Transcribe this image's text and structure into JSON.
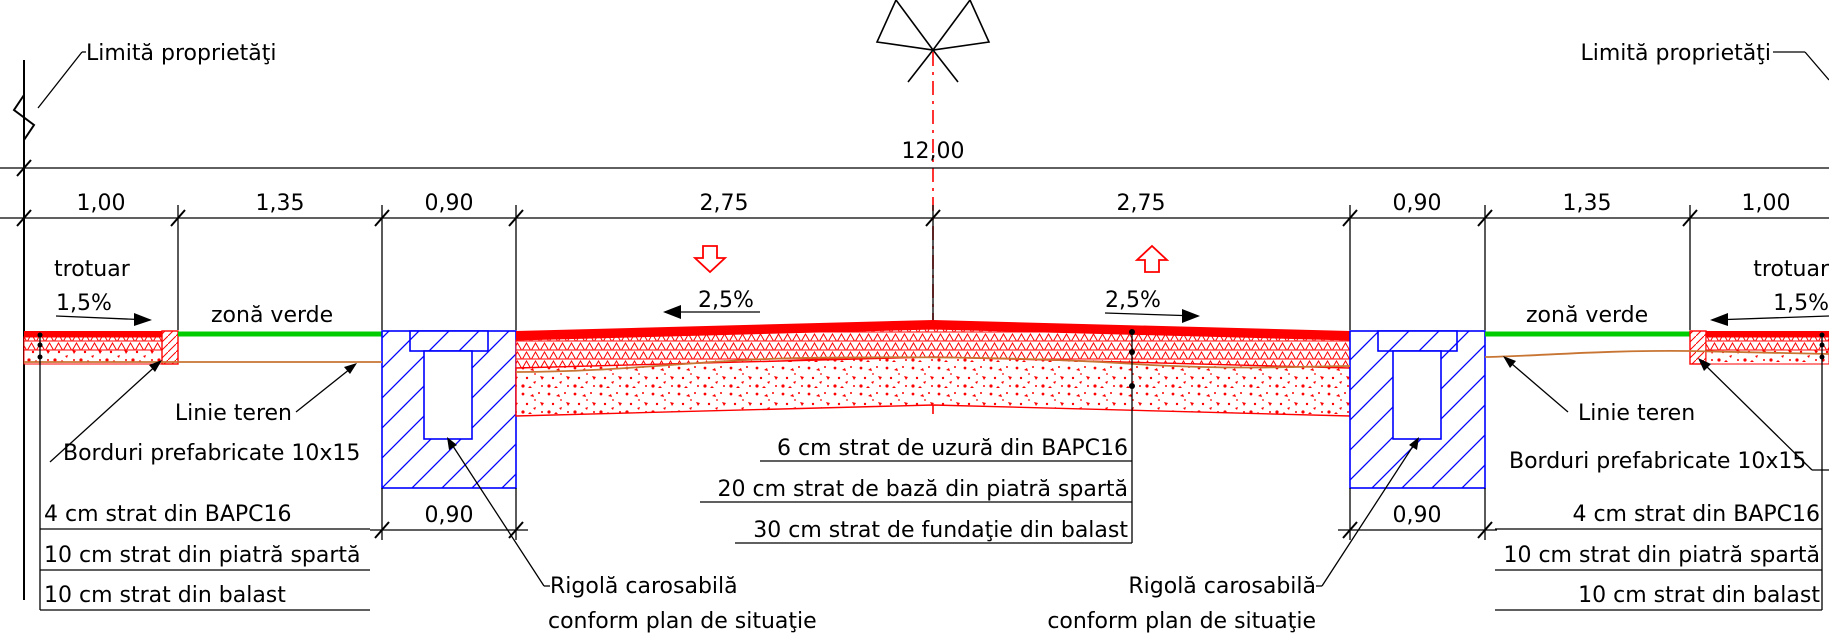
{
  "labels": {
    "property_limit_left": "Limită proprietăţi",
    "property_limit_right": "Limită proprietăţi",
    "sidewalk_left": "trotuar",
    "sidewalk_right": "trotuar",
    "green_left": "zonă verde",
    "green_right": "zonă verde",
    "terrain_left": "Linie teren",
    "terrain_right": "Linie teren",
    "curbs_left": "Borduri prefabricate 10x15",
    "curbs_right": "Borduri prefabricate 10x15",
    "gutter_left_l1": "Rigolă carosabilă",
    "gutter_left_l2": "conform plan de situaţie",
    "gutter_right_l1": "Rigolă carosabilă",
    "gutter_right_l2": "conform plan de situaţie"
  },
  "slopes": {
    "sidewalk_left": "1,5%",
    "sidewalk_right": "1,5%",
    "road_left": "2,5%",
    "road_right": "2,5%"
  },
  "dimensions": {
    "total": "12,00",
    "sidewalk_left": "1,00",
    "green_left": "1,35",
    "gutter_left": "0,90",
    "lane_left": "2,75",
    "lane_right": "2,75",
    "gutter_right": "0,90",
    "green_right": "1,35",
    "sidewalk_right": "1,00",
    "gutter_left_bottom": "0,90",
    "gutter_right_bottom": "0,90"
  },
  "road_layers": [
    "6 cm strat de uzură din BAPC16",
    "20 cm strat de bază din piatră spartă",
    "30 cm strat de fundaţie din balast"
  ],
  "sidewalk_layers_left": [
    "4 cm strat din BAPC16",
    "10 cm strat din piatră spartă",
    "10 cm strat din balast"
  ],
  "sidewalk_layers_right": [
    "4 cm strat din BAPC16",
    "10 cm strat din piatră spartă",
    "10 cm strat din balast"
  ],
  "colors": {
    "asphalt": "#ff0000",
    "gutter": "#0000ff",
    "green_zone": "#00cc00",
    "terrain": "#c87533",
    "axis": "#ff0000"
  },
  "icons": {
    "axis_symbol": "road-axis-flags-icon",
    "traffic_down": "arrow-down-outline-icon",
    "traffic_up": "arrow-up-outline-icon"
  }
}
